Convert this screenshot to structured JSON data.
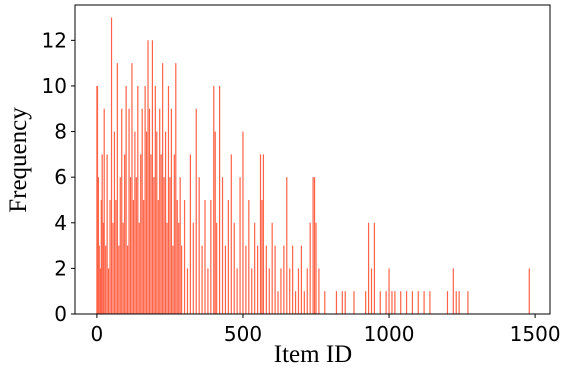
{
  "chart_data": {
    "type": "bar",
    "x_label": "Item ID",
    "y_label": "Frequency",
    "color": "#ff6347",
    "x": [
      0,
      2,
      5,
      8,
      12,
      15,
      18,
      22,
      25,
      30,
      35,
      40,
      45,
      50,
      55,
      60,
      65,
      70,
      75,
      80,
      85,
      90,
      95,
      100,
      105,
      110,
      115,
      120,
      125,
      130,
      135,
      140,
      145,
      150,
      155,
      160,
      165,
      170,
      175,
      180,
      185,
      190,
      195,
      200,
      205,
      210,
      215,
      220,
      225,
      230,
      235,
      240,
      245,
      250,
      255,
      260,
      265,
      270,
      275,
      280,
      285,
      290,
      300,
      310,
      320,
      330,
      340,
      350,
      360,
      370,
      380,
      390,
      400,
      405,
      410,
      420,
      430,
      440,
      450,
      460,
      470,
      480,
      490,
      500,
      510,
      520,
      530,
      540,
      550,
      560,
      565,
      570,
      580,
      590,
      600,
      610,
      620,
      630,
      640,
      650,
      660,
      670,
      680,
      690,
      700,
      710,
      720,
      730,
      740,
      745,
      750,
      760,
      780,
      820,
      840,
      850,
      880,
      920,
      930,
      940,
      950,
      970,
      990,
      1000,
      1010,
      1020,
      1040,
      1060,
      1080,
      1100,
      1120,
      1140,
      1200,
      1220,
      1230,
      1240,
      1270,
      1480
    ],
    "values": [
      10,
      10,
      6,
      3,
      2,
      5,
      7,
      4,
      9,
      3,
      7,
      2,
      5,
      13,
      4,
      8,
      5,
      11,
      3,
      6,
      9,
      4,
      7,
      10,
      3,
      9,
      6,
      11,
      5,
      8,
      6,
      10,
      4,
      7,
      9,
      5,
      10,
      8,
      12,
      9,
      7,
      12,
      6,
      10,
      8,
      5,
      9,
      7,
      11,
      6,
      8,
      4,
      10,
      6,
      9,
      3,
      7,
      11,
      5,
      4,
      6,
      3,
      5,
      2,
      7,
      4,
      9,
      6,
      3,
      5,
      2,
      5,
      10,
      8,
      4,
      10,
      6,
      3,
      5,
      7,
      4,
      2,
      6,
      8,
      3,
      5,
      2,
      4,
      3,
      7,
      5,
      7,
      3,
      2,
      4,
      3,
      1,
      2,
      3,
      6,
      2,
      3,
      1,
      2,
      3,
      1,
      2,
      4,
      6,
      6,
      4,
      2,
      1,
      1,
      1,
      1,
      1,
      1,
      4,
      2,
      4,
      1,
      1,
      2,
      1,
      1,
      1,
      1,
      1,
      1,
      1,
      1,
      1,
      2,
      1,
      1,
      1,
      2
    ],
    "xlim": [
      -75,
      1551
    ],
    "ylim": [
      0,
      13.55
    ],
    "xticks": [
      0,
      500,
      1000,
      1500
    ],
    "yticks": [
      0,
      2,
      4,
      6,
      8,
      10,
      12
    ],
    "grid": false
  }
}
